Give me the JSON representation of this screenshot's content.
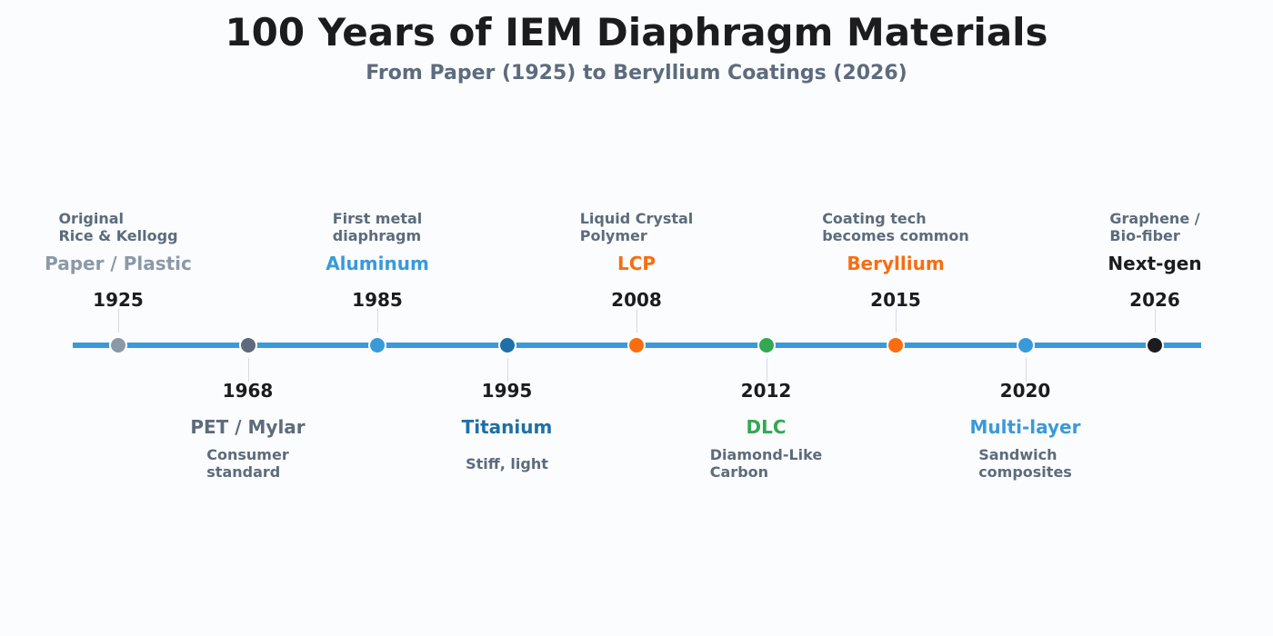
{
  "title": "100 Years of IEM Diaphragm Materials",
  "subtitle": "From Paper (1925) to Beryllium Coatings (2026)",
  "chart_data": {
    "type": "timeline",
    "events": [
      {
        "year": "1925",
        "material": "Paper / Plastic",
        "note": "Original\nRice & Kellogg",
        "position": "above",
        "color": "#8a99a8"
      },
      {
        "year": "1968",
        "material": "PET / Mylar",
        "note": "Consumer\nstandard",
        "position": "below",
        "color": "#5d6b7c"
      },
      {
        "year": "1985",
        "material": "Aluminum",
        "note": "First metal\ndiaphragm",
        "position": "above",
        "color": "#3a9ad9"
      },
      {
        "year": "1995",
        "material": "Titanium",
        "note": "Stiff, light",
        "position": "below",
        "color": "#1f6fa8"
      },
      {
        "year": "2008",
        "material": "LCP",
        "note": "Liquid Crystal\nPolymer",
        "position": "above",
        "color": "#f96d10"
      },
      {
        "year": "2012",
        "material": "DLC",
        "note": "Diamond-Like\nCarbon",
        "position": "below",
        "color": "#33a852"
      },
      {
        "year": "2015",
        "material": "Beryllium",
        "note": "Coating tech\nbecomes common",
        "position": "above",
        "color": "#f96d10"
      },
      {
        "year": "2020",
        "material": "Multi-layer",
        "note": "Sandwich\ncomposites",
        "position": "below",
        "color": "#3a9ad9"
      },
      {
        "year": "2026",
        "material": "Next-gen",
        "note": "Graphene /\nBio-fiber",
        "position": "above",
        "color": "#1c1c1e"
      }
    ],
    "line_color": "#3a9ad9"
  }
}
